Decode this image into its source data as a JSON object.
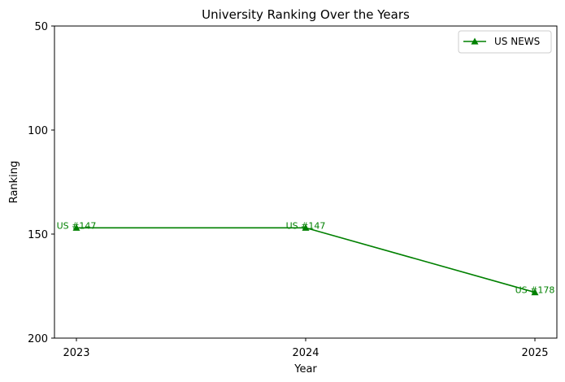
{
  "chart_data": {
    "type": "line",
    "title": "University Ranking Over the Years",
    "xlabel": "Year",
    "ylabel": "Ranking",
    "x": [
      "2023",
      "2024",
      "2025"
    ],
    "y_inverted": true,
    "ylim": [
      50,
      200
    ],
    "yticks": [
      "50",
      "100",
      "150",
      "200"
    ],
    "grid": false,
    "legend_position": "top-right",
    "series": [
      {
        "name": "US NEWS",
        "values": [
          147,
          147,
          178
        ],
        "labels": [
          "US #147",
          "US #147",
          "US #178"
        ],
        "color": "#008000",
        "marker": "triangle-up"
      }
    ]
  }
}
